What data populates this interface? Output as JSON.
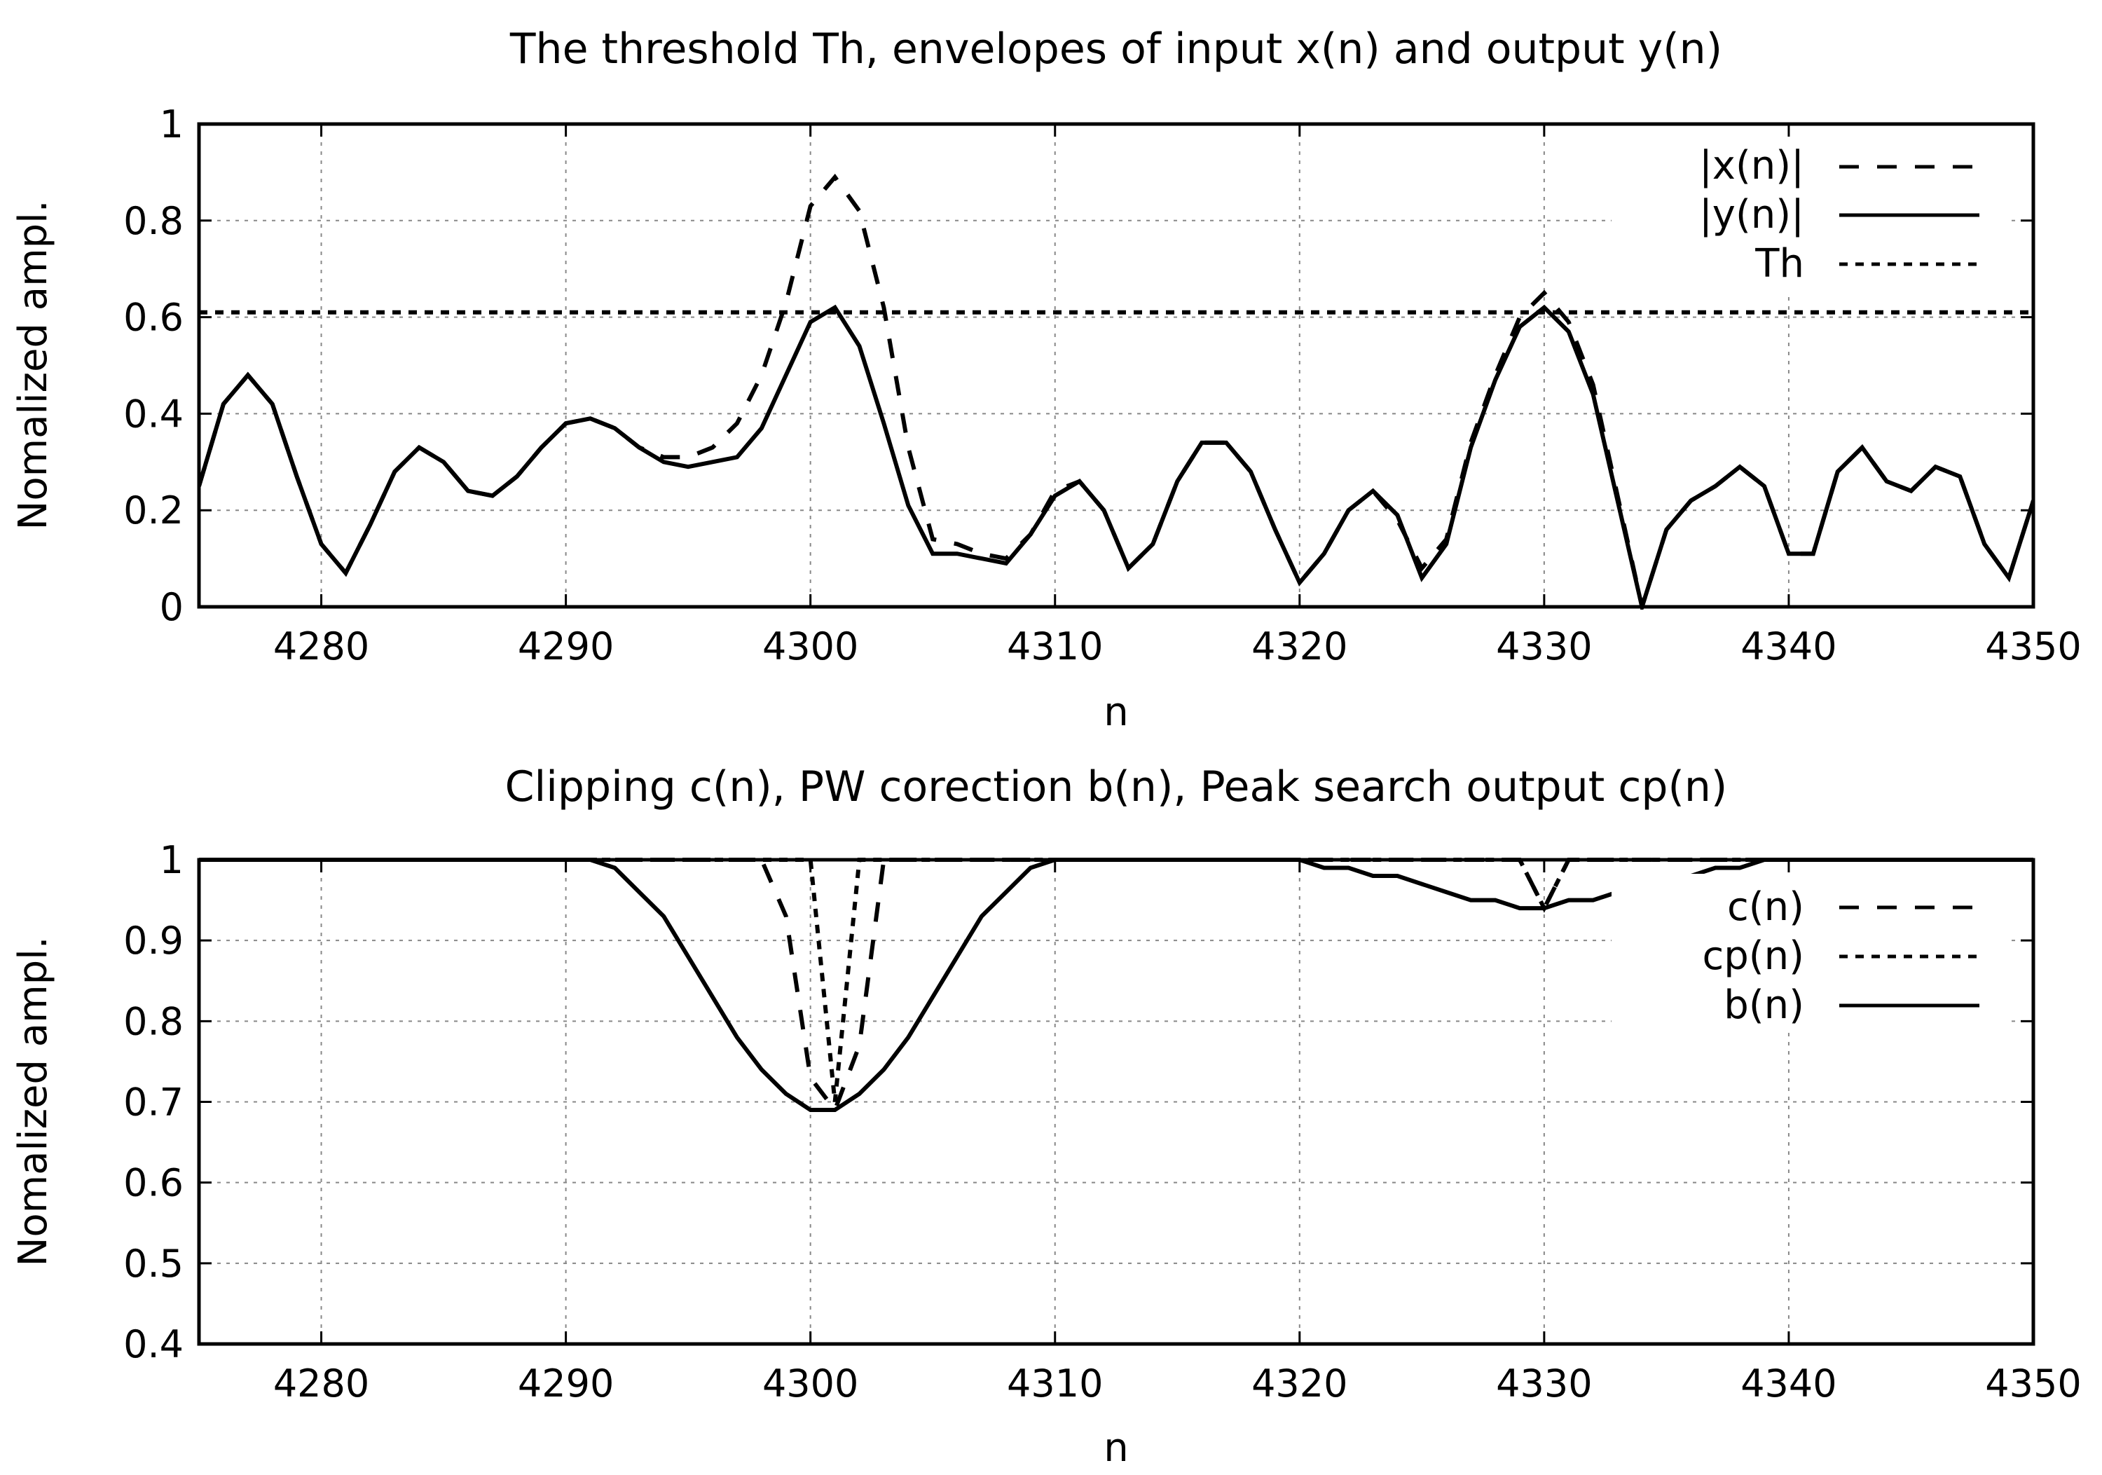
{
  "chart_data": [
    {
      "type": "line",
      "title": "The threshold Th, envelopes of input x(n) and output y(n)",
      "xlabel": "n",
      "ylabel": "Nomalized ampl.",
      "xlim": [
        4275,
        4350
      ],
      "ylim": [
        0,
        1
      ],
      "xticks": [
        4280,
        4290,
        4300,
        4310,
        4320,
        4330,
        4340,
        4350
      ],
      "yticks": [
        0,
        0.2,
        0.4,
        0.6,
        0.8,
        1
      ],
      "ytick_labels": [
        "0",
        "0.2",
        "0.4",
        "0.6",
        "0.8",
        "1"
      ],
      "grid": true,
      "legend_position": "top-right",
      "x": [
        4275,
        4276,
        4277,
        4278,
        4279,
        4280,
        4281,
        4282,
        4283,
        4284,
        4285,
        4286,
        4287,
        4288,
        4289,
        4290,
        4291,
        4292,
        4293,
        4294,
        4295,
        4296,
        4297,
        4298,
        4299,
        4300,
        4301,
        4302,
        4303,
        4304,
        4305,
        4306,
        4307,
        4308,
        4309,
        4310,
        4311,
        4312,
        4313,
        4314,
        4315,
        4316,
        4317,
        4318,
        4319,
        4320,
        4321,
        4322,
        4323,
        4324,
        4325,
        4326,
        4327,
        4328,
        4329,
        4330,
        4331,
        4332,
        4333,
        4334,
        4335,
        4336,
        4337,
        4338,
        4339,
        4340,
        4341,
        4342,
        4343,
        4344,
        4345,
        4346,
        4347,
        4348,
        4349,
        4350
      ],
      "series": [
        {
          "name": "|x(n)|",
          "style": "dashed",
          "values": [
            0.25,
            0.42,
            0.48,
            0.42,
            0.27,
            0.13,
            0.07,
            0.17,
            0.28,
            0.33,
            0.3,
            0.24,
            0.23,
            0.27,
            0.33,
            0.38,
            0.39,
            0.37,
            0.33,
            0.31,
            0.31,
            0.33,
            0.38,
            0.48,
            0.63,
            0.83,
            0.89,
            0.82,
            0.62,
            0.33,
            0.14,
            0.13,
            0.11,
            0.1,
            0.15,
            0.24,
            0.26,
            0.2,
            0.08,
            0.13,
            0.26,
            0.34,
            0.34,
            0.28,
            0.16,
            0.05,
            0.11,
            0.2,
            0.24,
            0.18,
            0.08,
            0.14,
            0.34,
            0.48,
            0.6,
            0.65,
            0.59,
            0.46,
            0.23,
            0.0,
            0.16,
            0.22,
            0.25,
            0.29,
            0.25,
            0.11,
            0.11,
            0.28,
            0.33,
            0.26,
            0.24,
            0.29,
            0.27,
            0.13,
            0.06,
            0.22
          ]
        },
        {
          "name": "|y(n)|",
          "style": "solid",
          "values": [
            0.25,
            0.42,
            0.48,
            0.42,
            0.27,
            0.13,
            0.07,
            0.17,
            0.28,
            0.33,
            0.3,
            0.24,
            0.23,
            0.27,
            0.33,
            0.38,
            0.39,
            0.37,
            0.33,
            0.3,
            0.29,
            0.3,
            0.31,
            0.37,
            0.48,
            0.59,
            0.62,
            0.54,
            0.38,
            0.21,
            0.11,
            0.11,
            0.1,
            0.09,
            0.15,
            0.23,
            0.26,
            0.2,
            0.08,
            0.13,
            0.26,
            0.34,
            0.34,
            0.28,
            0.16,
            0.05,
            0.11,
            0.2,
            0.24,
            0.19,
            0.06,
            0.13,
            0.33,
            0.47,
            0.58,
            0.62,
            0.57,
            0.44,
            0.22,
            0.0,
            0.16,
            0.22,
            0.25,
            0.29,
            0.25,
            0.11,
            0.11,
            0.28,
            0.33,
            0.26,
            0.24,
            0.29,
            0.27,
            0.13,
            0.06,
            0.22
          ]
        },
        {
          "name": "Th",
          "style": "dotted",
          "constant": 0.61
        }
      ]
    },
    {
      "type": "line",
      "title": "Clipping c(n), PW corection b(n), Peak search output cp(n)",
      "xlabel": "n",
      "ylabel": "Nomalized ampl.",
      "xlim": [
        4275,
        4350
      ],
      "ylim": [
        0.4,
        1
      ],
      "xticks": [
        4280,
        4290,
        4300,
        4310,
        4320,
        4330,
        4340,
        4350
      ],
      "yticks": [
        0.4,
        0.5,
        0.6,
        0.7,
        0.8,
        0.9,
        1
      ],
      "ytick_labels": [
        "0.4",
        "0.5",
        "0.6",
        "0.7",
        "0.8",
        "0.9",
        "1"
      ],
      "grid": true,
      "legend_position": "top-right",
      "series": [
        {
          "name": "c(n)",
          "style": "dashed",
          "x": [
            4275,
            4298,
            4299,
            4300,
            4301,
            4302,
            4303,
            4329,
            4330,
            4331,
            4350
          ],
          "values": [
            1,
            1,
            0.93,
            0.73,
            0.69,
            0.77,
            1,
            1,
            0.94,
            1,
            1
          ]
        },
        {
          "name": "cp(n)",
          "style": "dotted",
          "x": [
            4275,
            4300,
            4301,
            4302,
            4329,
            4330,
            4331,
            4350
          ],
          "values": [
            1,
            1,
            0.7,
            1,
            1,
            0.94,
            1,
            1
          ]
        },
        {
          "name": "b(n)",
          "style": "solid",
          "x": [
            4275,
            4291,
            4292,
            4293,
            4294,
            4295,
            4296,
            4297,
            4298,
            4299,
            4300,
            4301,
            4302,
            4303,
            4304,
            4305,
            4306,
            4307,
            4308,
            4309,
            4310,
            4320,
            4321,
            4322,
            4323,
            4324,
            4325,
            4326,
            4327,
            4328,
            4329,
            4330,
            4331,
            4332,
            4333,
            4334,
            4335,
            4336,
            4337,
            4338,
            4339,
            4350
          ],
          "values": [
            1,
            1,
            0.99,
            0.96,
            0.93,
            0.88,
            0.83,
            0.78,
            0.74,
            0.71,
            0.69,
            0.69,
            0.71,
            0.74,
            0.78,
            0.83,
            0.88,
            0.93,
            0.96,
            0.99,
            1,
            1,
            0.99,
            0.99,
            0.98,
            0.98,
            0.97,
            0.96,
            0.95,
            0.95,
            0.94,
            0.94,
            0.95,
            0.95,
            0.96,
            0.97,
            0.98,
            0.98,
            0.99,
            0.99,
            1,
            1
          ]
        }
      ]
    }
  ]
}
